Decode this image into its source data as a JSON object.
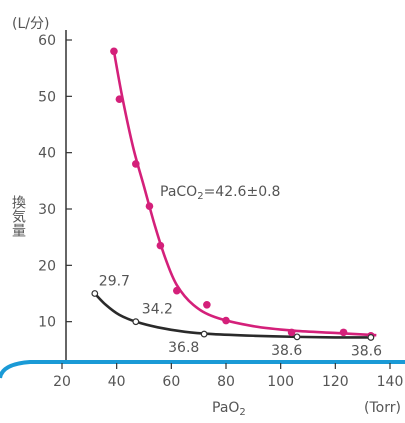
{
  "chart_data": {
    "type": "scatter",
    "xlabel": "PaO",
    "xlabel_sub": "2",
    "xunit": "(Torr)",
    "ylabel": "換気量",
    "yunit": "(L/分)",
    "xlim": [
      20,
      140
    ],
    "ylim": [
      0,
      60
    ],
    "xticks": [
      "20",
      "40",
      "60",
      "80",
      "100",
      "120",
      "140"
    ],
    "yticks": [
      "10",
      "20",
      "30",
      "40",
      "50",
      "60"
    ],
    "grid": false,
    "annotation": {
      "prefix": "PaCO",
      "sub": "2",
      "suffix": "=42.6±0.8"
    },
    "colors": {
      "high": "#d4207a",
      "low": "#2a2a2a",
      "baseline": "#1a9ad6"
    },
    "series": [
      {
        "x": [
          39,
          41,
          47,
          52,
          56,
          62,
          73,
          80,
          104,
          123,
          133
        ],
        "y": [
          58,
          49.5,
          38,
          30.5,
          23.5,
          15.5,
          13,
          10.2,
          8.1,
          8.1,
          7.5
        ],
        "curve": [
          [
            39,
            58
          ],
          [
            42,
            50
          ],
          [
            46,
            41
          ],
          [
            50,
            34
          ],
          [
            54,
            27
          ],
          [
            58,
            21
          ],
          [
            62,
            16.5
          ],
          [
            68,
            13
          ],
          [
            76,
            10.8
          ],
          [
            90,
            9.2
          ],
          [
            105,
            8.4
          ],
          [
            120,
            8
          ],
          [
            135,
            7.6
          ]
        ]
      },
      {
        "x": [
          32,
          47,
          72,
          106,
          133
        ],
        "y": [
          15,
          10,
          7.8,
          7.3,
          7.2
        ],
        "labels": [
          "29.7",
          "34.2",
          "36.8",
          "38.6",
          "38.6"
        ],
        "curve": [
          [
            32,
            15
          ],
          [
            36,
            13
          ],
          [
            41,
            11.2
          ],
          [
            47,
            10
          ],
          [
            55,
            9
          ],
          [
            65,
            8.2
          ],
          [
            75,
            7.8
          ],
          [
            90,
            7.5
          ],
          [
            106,
            7.3
          ],
          [
            120,
            7.2
          ],
          [
            133,
            7.2
          ]
        ]
      }
    ]
  }
}
